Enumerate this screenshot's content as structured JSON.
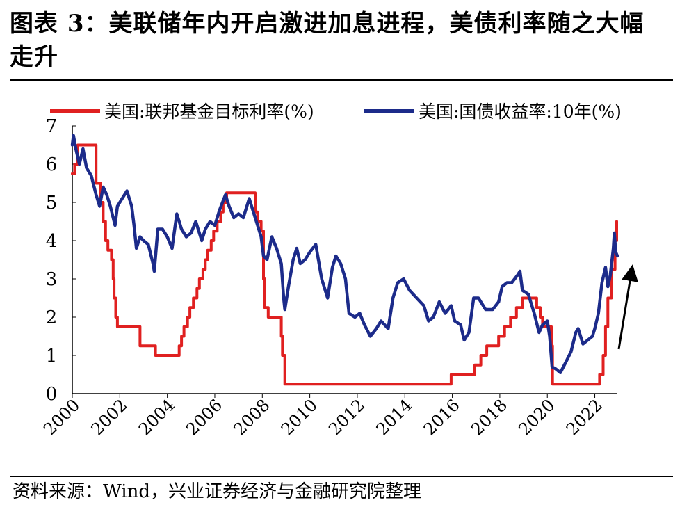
{
  "figure": {
    "title": "图表 3：美联储年内开启激进加息进程，美债利率随之大幅走升",
    "source": "资料来源：Wind，兴业证券经济与金融研究院整理"
  },
  "chart_data": {
    "type": "line",
    "title": "",
    "xlabel": "",
    "ylabel": "",
    "xlim": [
      2000,
      2022.95
    ],
    "ylim": [
      0,
      7
    ],
    "yticks": [
      0,
      1,
      2,
      3,
      4,
      5,
      6,
      7
    ],
    "xticks": [
      2000,
      2002,
      2004,
      2006,
      2008,
      2010,
      2012,
      2014,
      2016,
      2018,
      2020,
      2022
    ],
    "legend_position": "top",
    "annotation": "upward-arrow",
    "series": [
      {
        "name": "美国:联邦基金目标利率(%)",
        "color": "#e02020",
        "step": true,
        "points": [
          [
            2000.0,
            5.75
          ],
          [
            2000.1,
            5.75
          ],
          [
            2000.1,
            6.0
          ],
          [
            2000.23,
            6.0
          ],
          [
            2000.23,
            6.5
          ],
          [
            2001.0,
            6.5
          ],
          [
            2001.0,
            5.5
          ],
          [
            2001.2,
            5.5
          ],
          [
            2001.2,
            5.0
          ],
          [
            2001.3,
            5.0
          ],
          [
            2001.3,
            4.5
          ],
          [
            2001.4,
            4.5
          ],
          [
            2001.4,
            4.0
          ],
          [
            2001.5,
            4.0
          ],
          [
            2001.5,
            3.75
          ],
          [
            2001.65,
            3.75
          ],
          [
            2001.65,
            3.5
          ],
          [
            2001.72,
            3.5
          ],
          [
            2001.72,
            3.0
          ],
          [
            2001.76,
            3.0
          ],
          [
            2001.76,
            2.5
          ],
          [
            2001.83,
            2.5
          ],
          [
            2001.83,
            2.0
          ],
          [
            2001.9,
            2.0
          ],
          [
            2001.9,
            1.75
          ],
          [
            2002.85,
            1.75
          ],
          [
            2002.85,
            1.25
          ],
          [
            2003.5,
            1.25
          ],
          [
            2003.5,
            1.0
          ],
          [
            2004.5,
            1.0
          ],
          [
            2004.5,
            1.25
          ],
          [
            2004.6,
            1.25
          ],
          [
            2004.6,
            1.5
          ],
          [
            2004.7,
            1.5
          ],
          [
            2004.7,
            1.75
          ],
          [
            2004.85,
            1.75
          ],
          [
            2004.85,
            2.0
          ],
          [
            2004.95,
            2.0
          ],
          [
            2004.95,
            2.25
          ],
          [
            2005.1,
            2.25
          ],
          [
            2005.1,
            2.5
          ],
          [
            2005.25,
            2.5
          ],
          [
            2005.25,
            2.75
          ],
          [
            2005.35,
            2.75
          ],
          [
            2005.35,
            3.0
          ],
          [
            2005.5,
            3.0
          ],
          [
            2005.5,
            3.25
          ],
          [
            2005.6,
            3.25
          ],
          [
            2005.6,
            3.5
          ],
          [
            2005.7,
            3.5
          ],
          [
            2005.7,
            3.75
          ],
          [
            2005.85,
            3.75
          ],
          [
            2005.85,
            4.0
          ],
          [
            2005.95,
            4.0
          ],
          [
            2005.95,
            4.25
          ],
          [
            2006.1,
            4.25
          ],
          [
            2006.1,
            4.5
          ],
          [
            2006.25,
            4.5
          ],
          [
            2006.25,
            4.75
          ],
          [
            2006.35,
            4.75
          ],
          [
            2006.35,
            5.0
          ],
          [
            2006.5,
            5.0
          ],
          [
            2006.5,
            5.25
          ],
          [
            2007.7,
            5.25
          ],
          [
            2007.7,
            4.75
          ],
          [
            2007.8,
            4.75
          ],
          [
            2007.8,
            4.5
          ],
          [
            2007.95,
            4.5
          ],
          [
            2007.95,
            4.25
          ],
          [
            2008.05,
            4.25
          ],
          [
            2008.05,
            3.0
          ],
          [
            2008.1,
            3.0
          ],
          [
            2008.1,
            2.25
          ],
          [
            2008.25,
            2.25
          ],
          [
            2008.25,
            2.0
          ],
          [
            2008.8,
            2.0
          ],
          [
            2008.8,
            1.5
          ],
          [
            2008.85,
            1.5
          ],
          [
            2008.85,
            1.0
          ],
          [
            2008.95,
            1.0
          ],
          [
            2008.95,
            0.25
          ],
          [
            2015.95,
            0.25
          ],
          [
            2015.95,
            0.5
          ],
          [
            2016.95,
            0.5
          ],
          [
            2016.95,
            0.75
          ],
          [
            2017.2,
            0.75
          ],
          [
            2017.2,
            1.0
          ],
          [
            2017.45,
            1.0
          ],
          [
            2017.45,
            1.25
          ],
          [
            2017.95,
            1.25
          ],
          [
            2017.95,
            1.5
          ],
          [
            2018.2,
            1.5
          ],
          [
            2018.2,
            1.75
          ],
          [
            2018.45,
            1.75
          ],
          [
            2018.45,
            2.0
          ],
          [
            2018.7,
            2.0
          ],
          [
            2018.7,
            2.25
          ],
          [
            2018.95,
            2.25
          ],
          [
            2018.95,
            2.5
          ],
          [
            2019.55,
            2.5
          ],
          [
            2019.55,
            2.25
          ],
          [
            2019.7,
            2.25
          ],
          [
            2019.7,
            2.0
          ],
          [
            2019.8,
            2.0
          ],
          [
            2019.8,
            1.75
          ],
          [
            2020.17,
            1.75
          ],
          [
            2020.17,
            1.25
          ],
          [
            2020.22,
            1.25
          ],
          [
            2020.22,
            0.25
          ],
          [
            2022.2,
            0.25
          ],
          [
            2022.2,
            0.5
          ],
          [
            2022.35,
            0.5
          ],
          [
            2022.35,
            1.0
          ],
          [
            2022.45,
            1.0
          ],
          [
            2022.45,
            1.75
          ],
          [
            2022.55,
            1.75
          ],
          [
            2022.55,
            2.5
          ],
          [
            2022.7,
            2.5
          ],
          [
            2022.7,
            3.25
          ],
          [
            2022.85,
            3.25
          ],
          [
            2022.85,
            4.0
          ],
          [
            2022.92,
            4.0
          ],
          [
            2022.92,
            4.5
          ]
        ]
      },
      {
        "name": "美国:国债收益率:10年(%)",
        "color": "#1c2b8a",
        "step": false,
        "points": [
          [
            2000.0,
            6.5
          ],
          [
            2000.05,
            6.75
          ],
          [
            2000.15,
            6.4
          ],
          [
            2000.3,
            6.0
          ],
          [
            2000.45,
            6.4
          ],
          [
            2000.6,
            5.9
          ],
          [
            2000.8,
            5.7
          ],
          [
            2001.0,
            5.2
          ],
          [
            2001.15,
            4.9
          ],
          [
            2001.3,
            5.4
          ],
          [
            2001.45,
            5.2
          ],
          [
            2001.6,
            4.9
          ],
          [
            2001.8,
            4.4
          ],
          [
            2001.9,
            4.9
          ],
          [
            2002.1,
            5.1
          ],
          [
            2002.3,
            5.3
          ],
          [
            2002.5,
            4.9
          ],
          [
            2002.6,
            4.4
          ],
          [
            2002.7,
            3.8
          ],
          [
            2002.85,
            4.1
          ],
          [
            2003.0,
            4.0
          ],
          [
            2003.2,
            3.9
          ],
          [
            2003.4,
            3.4
          ],
          [
            2003.45,
            3.2
          ],
          [
            2003.6,
            4.3
          ],
          [
            2003.8,
            4.3
          ],
          [
            2004.0,
            4.1
          ],
          [
            2004.2,
            3.8
          ],
          [
            2004.4,
            4.7
          ],
          [
            2004.6,
            4.3
          ],
          [
            2004.8,
            4.1
          ],
          [
            2005.0,
            4.2
          ],
          [
            2005.2,
            4.5
          ],
          [
            2005.45,
            4.0
          ],
          [
            2005.6,
            4.3
          ],
          [
            2005.8,
            4.5
          ],
          [
            2006.0,
            4.4
          ],
          [
            2006.2,
            4.8
          ],
          [
            2006.45,
            5.2
          ],
          [
            2006.6,
            4.9
          ],
          [
            2006.8,
            4.6
          ],
          [
            2007.0,
            4.7
          ],
          [
            2007.2,
            4.6
          ],
          [
            2007.45,
            5.1
          ],
          [
            2007.6,
            4.8
          ],
          [
            2007.8,
            4.4
          ],
          [
            2007.95,
            4.1
          ],
          [
            2008.05,
            3.6
          ],
          [
            2008.2,
            3.5
          ],
          [
            2008.4,
            4.1
          ],
          [
            2008.6,
            3.8
          ],
          [
            2008.8,
            3.4
          ],
          [
            2008.9,
            2.5
          ],
          [
            2008.95,
            2.2
          ],
          [
            2009.1,
            2.8
          ],
          [
            2009.3,
            3.5
          ],
          [
            2009.45,
            3.8
          ],
          [
            2009.6,
            3.4
          ],
          [
            2009.8,
            3.5
          ],
          [
            2010.0,
            3.7
          ],
          [
            2010.25,
            3.9
          ],
          [
            2010.5,
            3.0
          ],
          [
            2010.75,
            2.5
          ],
          [
            2010.95,
            3.3
          ],
          [
            2011.1,
            3.6
          ],
          [
            2011.3,
            3.4
          ],
          [
            2011.5,
            3.0
          ],
          [
            2011.65,
            2.1
          ],
          [
            2011.9,
            2.0
          ],
          [
            2012.1,
            2.1
          ],
          [
            2012.3,
            1.8
          ],
          [
            2012.55,
            1.5
          ],
          [
            2012.8,
            1.7
          ],
          [
            2013.0,
            1.9
          ],
          [
            2013.3,
            1.7
          ],
          [
            2013.5,
            2.5
          ],
          [
            2013.7,
            2.9
          ],
          [
            2013.95,
            3.0
          ],
          [
            2014.2,
            2.7
          ],
          [
            2014.5,
            2.5
          ],
          [
            2014.8,
            2.3
          ],
          [
            2015.0,
            1.9
          ],
          [
            2015.2,
            2.0
          ],
          [
            2015.45,
            2.4
          ],
          [
            2015.7,
            2.1
          ],
          [
            2015.95,
            2.3
          ],
          [
            2016.1,
            1.9
          ],
          [
            2016.35,
            1.8
          ],
          [
            2016.5,
            1.4
          ],
          [
            2016.7,
            1.6
          ],
          [
            2016.9,
            2.5
          ],
          [
            2017.1,
            2.5
          ],
          [
            2017.4,
            2.2
          ],
          [
            2017.7,
            2.2
          ],
          [
            2017.95,
            2.4
          ],
          [
            2018.1,
            2.8
          ],
          [
            2018.3,
            2.9
          ],
          [
            2018.5,
            2.9
          ],
          [
            2018.75,
            3.1
          ],
          [
            2018.85,
            3.2
          ],
          [
            2018.95,
            2.7
          ],
          [
            2019.2,
            2.6
          ],
          [
            2019.45,
            2.1
          ],
          [
            2019.65,
            1.6
          ],
          [
            2019.8,
            1.8
          ],
          [
            2020.0,
            1.9
          ],
          [
            2020.1,
            1.5
          ],
          [
            2020.2,
            0.7
          ],
          [
            2020.35,
            0.65
          ],
          [
            2020.55,
            0.55
          ],
          [
            2020.8,
            0.85
          ],
          [
            2021.0,
            1.1
          ],
          [
            2021.2,
            1.6
          ],
          [
            2021.3,
            1.7
          ],
          [
            2021.5,
            1.3
          ],
          [
            2021.7,
            1.4
          ],
          [
            2021.9,
            1.5
          ],
          [
            2022.0,
            1.7
          ],
          [
            2022.15,
            2.1
          ],
          [
            2022.3,
            2.9
          ],
          [
            2022.45,
            3.3
          ],
          [
            2022.55,
            2.8
          ],
          [
            2022.65,
            3.1
          ],
          [
            2022.78,
            3.8
          ],
          [
            2022.82,
            4.2
          ],
          [
            2022.88,
            3.7
          ],
          [
            2022.95,
            3.6
          ]
        ]
      }
    ]
  }
}
